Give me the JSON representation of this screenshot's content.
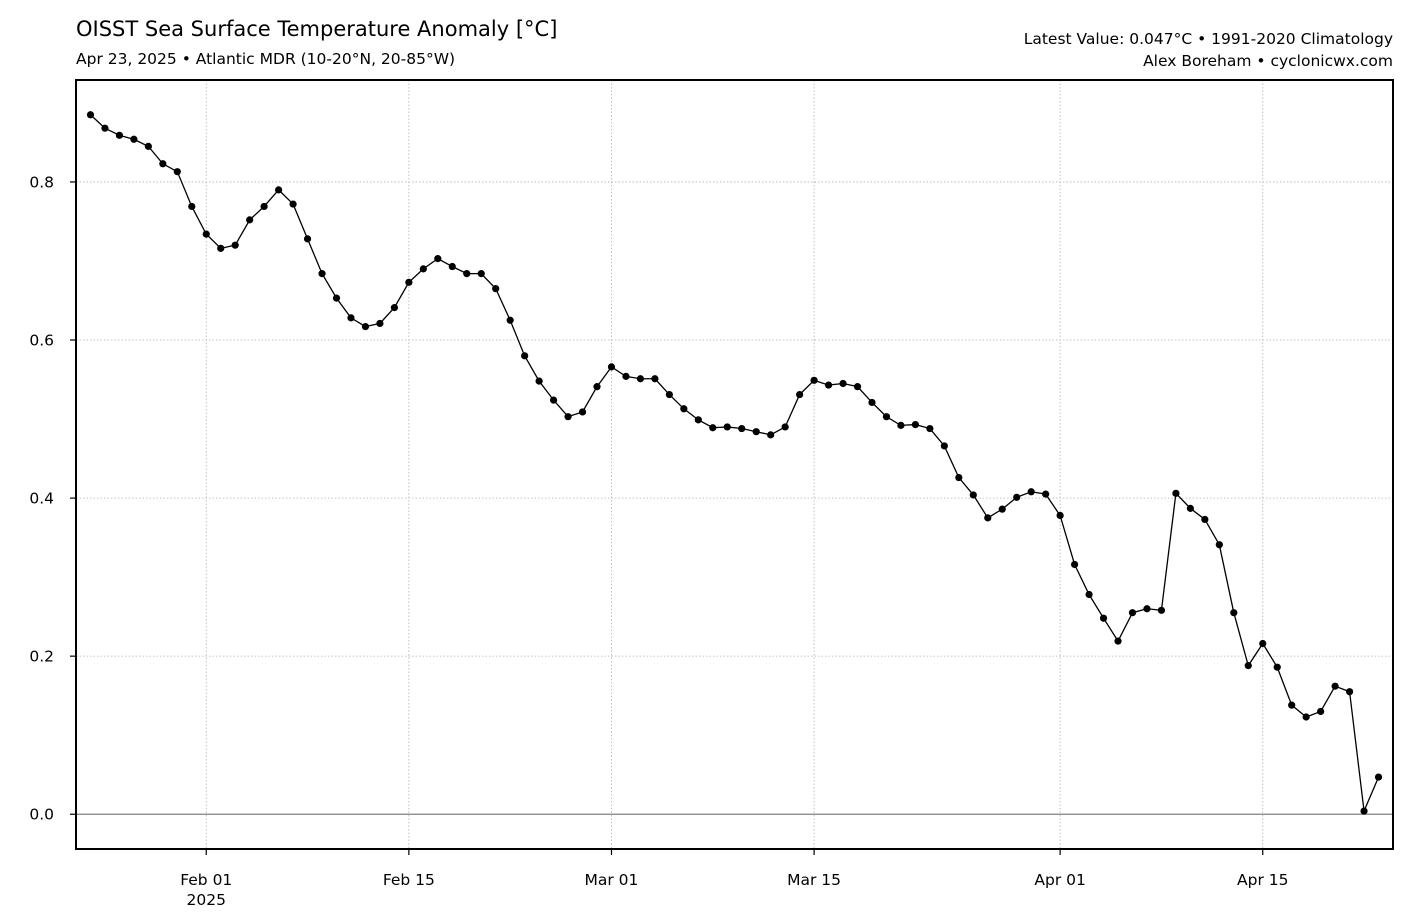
{
  "header": {
    "title": "OISST Sea Surface Temperature Anomaly [°C]",
    "subtitle": "Apr 23, 2025 • Atlantic MDR (10-20°N, 20-85°W)",
    "latest": "Latest Value: 0.047°C • 1991-2020 Climatology",
    "credit": "Alex Boreham • cyclonicwx.com"
  },
  "chart_data": {
    "type": "line",
    "title": "OISST Sea Surface Temperature Anomaly [°C]",
    "xlabel": "",
    "ylabel": "",
    "x_start": "2025-01-24",
    "x_end": "2025-04-23",
    "xlim": [
      "2025-01-23",
      "2025-04-24"
    ],
    "ylim": [
      -0.044,
      0.929
    ],
    "grid": true,
    "legend": "none",
    "marker": "circle",
    "line_color": "#000000",
    "zero_line_color": "#808080",
    "x_ticks": [
      {
        "date": "2025-02-01",
        "label": "Feb 01",
        "sublabel": "2025"
      },
      {
        "date": "2025-02-15",
        "label": "Feb 15",
        "sublabel": ""
      },
      {
        "date": "2025-03-01",
        "label": "Mar 01",
        "sublabel": ""
      },
      {
        "date": "2025-03-15",
        "label": "Mar 15",
        "sublabel": ""
      },
      {
        "date": "2025-04-01",
        "label": "Apr 01",
        "sublabel": ""
      },
      {
        "date": "2025-04-15",
        "label": "Apr 15",
        "sublabel": ""
      }
    ],
    "y_ticks": [
      {
        "value": 0.0,
        "label": "0.0"
      },
      {
        "value": 0.2,
        "label": "0.2"
      },
      {
        "value": 0.4,
        "label": "0.4"
      },
      {
        "value": 0.6,
        "label": "0.6"
      },
      {
        "value": 0.8,
        "label": "0.8"
      }
    ],
    "series": [
      {
        "values": [
          0.885,
          0.868,
          0.859,
          0.854,
          0.845,
          0.823,
          0.813,
          0.769,
          0.734,
          0.716,
          0.72,
          0.752,
          0.769,
          0.79,
          0.772,
          0.728,
          0.684,
          0.653,
          0.628,
          0.617,
          0.621,
          0.641,
          0.673,
          0.69,
          0.703,
          0.693,
          0.684,
          0.684,
          0.665,
          0.625,
          0.58,
          0.548,
          0.524,
          0.503,
          0.509,
          0.541,
          0.566,
          0.554,
          0.551,
          0.551,
          0.531,
          0.513,
          0.499,
          0.489,
          0.49,
          0.488,
          0.484,
          0.48,
          0.49,
          0.531,
          0.549,
          0.543,
          0.545,
          0.541,
          0.521,
          0.503,
          0.492,
          0.493,
          0.488,
          0.466,
          0.426,
          0.404,
          0.375,
          0.386,
          0.401,
          0.408,
          0.405,
          0.378,
          0.316,
          0.278,
          0.248,
          0.219,
          0.255,
          0.26,
          0.258,
          0.406,
          0.387,
          0.373,
          0.341,
          0.255,
          0.188,
          0.216,
          0.186,
          0.138,
          0.123,
          0.13,
          0.162,
          0.155,
          0.004,
          0.047
        ]
      }
    ]
  }
}
